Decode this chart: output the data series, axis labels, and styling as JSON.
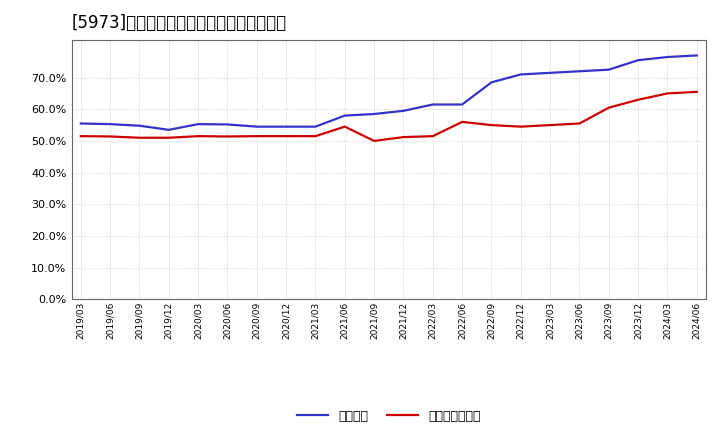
{
  "title": "[5973]　固定比率、固定長期適合率の推移",
  "x_labels": [
    "2019/03",
    "2019/06",
    "2019/09",
    "2019/12",
    "2020/03",
    "2020/06",
    "2020/09",
    "2020/12",
    "2021/03",
    "2021/06",
    "2021/09",
    "2021/12",
    "2022/03",
    "2022/06",
    "2022/09",
    "2022/12",
    "2023/03",
    "2023/06",
    "2023/09",
    "2023/12",
    "2024/03",
    "2024/06"
  ],
  "fixed_ratio": [
    55.5,
    55.3,
    54.8,
    53.5,
    55.3,
    55.2,
    54.5,
    54.5,
    54.5,
    58.0,
    58.5,
    59.5,
    61.5,
    61.5,
    68.5,
    71.0,
    71.5,
    72.0,
    72.5,
    75.5,
    76.5,
    77.0
  ],
  "fixed_long_ratio": [
    51.5,
    51.4,
    51.0,
    51.0,
    51.5,
    51.4,
    51.5,
    51.5,
    51.5,
    54.5,
    50.0,
    51.2,
    51.5,
    56.0,
    55.0,
    54.5,
    55.0,
    55.5,
    60.5,
    63.0,
    65.0,
    65.5
  ],
  "line_color_blue": "#3333cc",
  "line_color_red": "#cc0000",
  "background_color": "#ffffff",
  "plot_bg_color": "#ffffff",
  "grid_color": "#888888",
  "ylim_min": 0,
  "ylim_max": 80,
  "yticks": [
    0,
    10,
    20,
    30,
    40,
    50,
    60,
    70
  ],
  "legend_label_blue": "固定比率",
  "legend_label_red": "固定長期適合率",
  "title_color": "#000000",
  "title_fontsize": 12,
  "line_width": 1.6
}
